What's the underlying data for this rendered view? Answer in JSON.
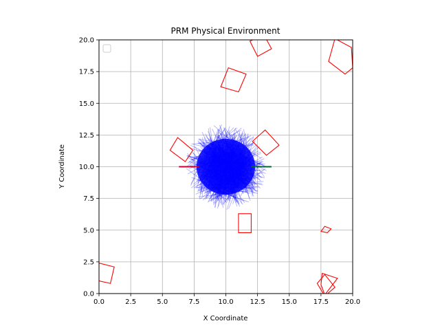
{
  "chart_data": {
    "type": "scatter",
    "title": "PRM Physical Environment",
    "xlabel": "X Coordinate",
    "ylabel": "Y Coordinate",
    "xlim": [
      0,
      20
    ],
    "ylim": [
      0,
      20
    ],
    "xticks": [
      0.0,
      2.5,
      5.0,
      7.5,
      10.0,
      12.5,
      15.0,
      17.5,
      20.0
    ],
    "yticks": [
      0.0,
      2.5,
      5.0,
      7.5,
      10.0,
      12.5,
      15.0,
      17.5,
      20.0
    ],
    "xtick_labels": [
      "0.0",
      "2.5",
      "5.0",
      "7.5",
      "10.0",
      "12.5",
      "15.0",
      "17.5",
      "20.0"
    ],
    "ytick_labels": [
      "0.0",
      "2.5",
      "5.0",
      "7.5",
      "10.0",
      "12.5",
      "15.0",
      "17.5",
      "20.0"
    ],
    "grid": true,
    "legend": {
      "placement": "top-left",
      "entries": []
    },
    "roadmap": {
      "color": "#0000ff",
      "center": [
        10,
        10
      ],
      "core_radius": 2.2,
      "max_radius": 3.4
    },
    "paths": [
      {
        "color": "#cc0033",
        "points": [
          [
            6.3,
            10.0
          ],
          [
            7.9,
            10.0
          ]
        ]
      },
      {
        "color": "#006633",
        "points": [
          [
            12.0,
            10.0
          ],
          [
            13.6,
            10.0
          ]
        ]
      }
    ],
    "obstacles_color": "#ff0000",
    "obstacles": [
      [
        [
          11.9,
          19.9
        ],
        [
          13.0,
          20.4
        ],
        [
          13.6,
          19.3
        ],
        [
          12.5,
          18.7
        ]
      ],
      [
        [
          18.6,
          20.1
        ],
        [
          19.9,
          19.4
        ],
        [
          20.0,
          17.8
        ],
        [
          19.4,
          17.3
        ],
        [
          18.1,
          18.3
        ]
      ],
      [
        [
          10.2,
          17.8
        ],
        [
          11.6,
          17.3
        ],
        [
          11.0,
          15.9
        ],
        [
          9.6,
          16.3
        ]
      ],
      [
        [
          12.1,
          12.0
        ],
        [
          13.1,
          12.9
        ],
        [
          14.2,
          11.7
        ],
        [
          13.2,
          10.9
        ]
      ],
      [
        [
          5.6,
          11.3
        ],
        [
          6.8,
          10.4
        ],
        [
          7.4,
          11.3
        ],
        [
          6.2,
          12.3
        ]
      ],
      [
        [
          11.0,
          6.3
        ],
        [
          12.0,
          6.3
        ],
        [
          12.0,
          4.8
        ],
        [
          11.0,
          4.8
        ]
      ],
      [
        [
          17.8,
          5.3
        ],
        [
          18.3,
          5.1
        ],
        [
          18.0,
          4.8
        ],
        [
          17.5,
          4.9
        ]
      ],
      [
        [
          0.0,
          2.4
        ],
        [
          1.2,
          2.1
        ],
        [
          0.9,
          0.8
        ],
        [
          0.0,
          1.0
        ]
      ],
      [
        [
          17.2,
          0.8
        ],
        [
          17.8,
          1.5
        ],
        [
          18.6,
          0.5
        ],
        [
          17.8,
          -0.2
        ]
      ],
      [
        [
          17.6,
          1.6
        ],
        [
          18.8,
          1.2
        ],
        [
          17.8,
          -0.1
        ],
        [
          17.5,
          0.7
        ]
      ]
    ]
  }
}
